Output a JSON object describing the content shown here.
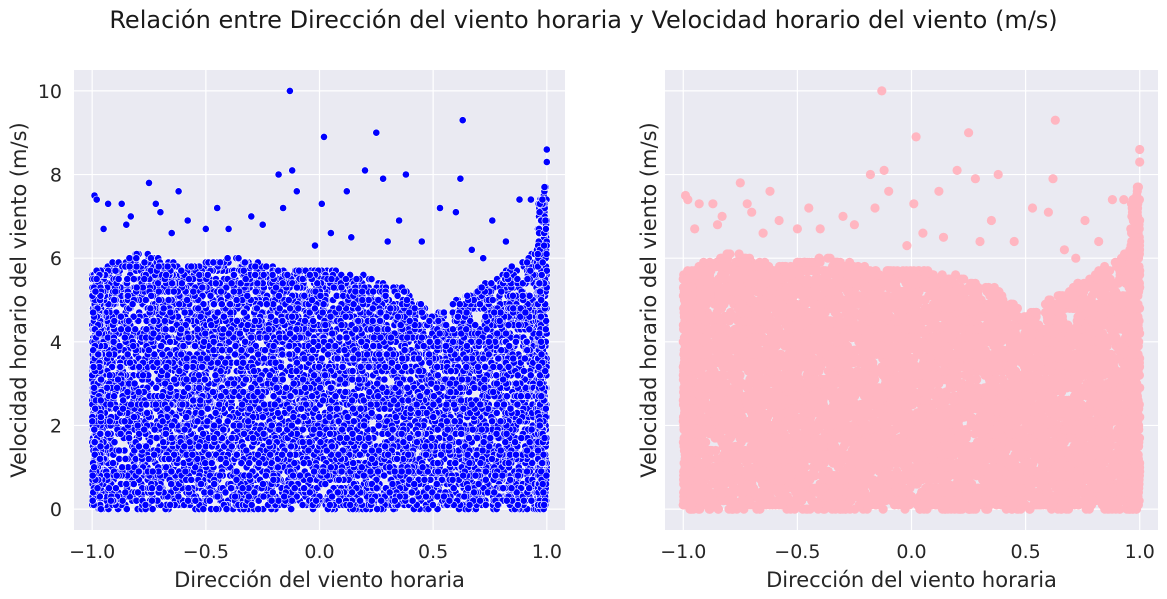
{
  "figure": {
    "suptitle": "Relación entre Dirección del viento horaria y Velocidad horario del viento (m/s)"
  },
  "chart_data": [
    {
      "type": "scatter",
      "title": "",
      "xlabel": "Dirección del viento horaria",
      "ylabel": "Velocidad horario del viento (m/s)",
      "xlim": [
        -1.08,
        1.08
      ],
      "ylim": [
        -0.5,
        10.5
      ],
      "xticks": [
        -1.0,
        -0.5,
        0.0,
        0.5,
        1.0
      ],
      "xtick_labels": [
        "−1.0",
        "−0.5",
        "0.0",
        "0.5",
        "1.0"
      ],
      "yticks": [
        0,
        2,
        4,
        6,
        8,
        10
      ],
      "ytick_labels": [
        "0",
        "2",
        "4",
        "6",
        "8",
        "10"
      ],
      "grid": true,
      "marker_color": "#0000ff",
      "marker_edge": "#ffffff",
      "density_upper_envelope": [
        {
          "x": -1.0,
          "y": 5.6
        },
        {
          "x": -0.8,
          "y": 6.2
        },
        {
          "x": -0.6,
          "y": 5.8
        },
        {
          "x": -0.4,
          "y": 6.0
        },
        {
          "x": -0.2,
          "y": 5.8
        },
        {
          "x": 0.0,
          "y": 5.7
        },
        {
          "x": 0.2,
          "y": 5.6
        },
        {
          "x": 0.4,
          "y": 5.2
        },
        {
          "x": 0.5,
          "y": 4.6
        },
        {
          "x": 0.6,
          "y": 5.0
        },
        {
          "x": 0.8,
          "y": 5.6
        },
        {
          "x": 0.95,
          "y": 6.2
        },
        {
          "x": 1.0,
          "y": 6.6
        }
      ],
      "outliers": [
        {
          "x": -0.13,
          "y": 10.0
        },
        {
          "x": 0.63,
          "y": 9.3
        },
        {
          "x": 0.25,
          "y": 9.0
        },
        {
          "x": 0.02,
          "y": 8.9
        },
        {
          "x": 1.0,
          "y": 8.6
        },
        {
          "x": 1.0,
          "y": 8.3
        },
        {
          "x": -0.12,
          "y": 8.1
        },
        {
          "x": -0.18,
          "y": 8.0
        },
        {
          "x": 0.2,
          "y": 8.1
        },
        {
          "x": 0.38,
          "y": 8.0
        },
        {
          "x": 0.28,
          "y": 7.9
        },
        {
          "x": 0.62,
          "y": 7.9
        },
        {
          "x": -0.75,
          "y": 7.8
        },
        {
          "x": -0.1,
          "y": 7.6
        },
        {
          "x": 0.12,
          "y": 7.6
        },
        {
          "x": -0.62,
          "y": 7.6
        },
        {
          "x": -0.99,
          "y": 7.5
        },
        {
          "x": -0.98,
          "y": 7.4
        },
        {
          "x": 0.88,
          "y": 7.4
        },
        {
          "x": 0.93,
          "y": 7.4
        },
        {
          "x": -0.93,
          "y": 7.3
        },
        {
          "x": -0.87,
          "y": 7.3
        },
        {
          "x": -0.72,
          "y": 7.3
        },
        {
          "x": -0.16,
          "y": 7.2
        },
        {
          "x": -0.45,
          "y": 7.2
        },
        {
          "x": 0.53,
          "y": 7.2
        },
        {
          "x": 0.01,
          "y": 7.3
        },
        {
          "x": -0.83,
          "y": 7.0
        },
        {
          "x": -0.7,
          "y": 7.1
        },
        {
          "x": -0.3,
          "y": 7.0
        },
        {
          "x": 0.6,
          "y": 7.1
        },
        {
          "x": 0.76,
          "y": 6.9
        },
        {
          "x": 0.35,
          "y": 6.9
        },
        {
          "x": -0.85,
          "y": 6.8
        },
        {
          "x": -0.58,
          "y": 6.9
        },
        {
          "x": -0.5,
          "y": 6.7
        },
        {
          "x": -0.25,
          "y": 6.8
        },
        {
          "x": 0.05,
          "y": 6.6
        },
        {
          "x": 0.14,
          "y": 6.5
        },
        {
          "x": -0.4,
          "y": 6.7
        },
        {
          "x": -0.65,
          "y": 6.6
        },
        {
          "x": 0.45,
          "y": 6.4
        },
        {
          "x": 0.82,
          "y": 6.4
        },
        {
          "x": -0.95,
          "y": 6.7
        },
        {
          "x": -0.02,
          "y": 6.3
        },
        {
          "x": 0.3,
          "y": 6.4
        },
        {
          "x": 0.67,
          "y": 6.2
        },
        {
          "x": 0.72,
          "y": 6.0
        }
      ]
    },
    {
      "type": "scatter",
      "title": "",
      "xlabel": "Dirección del viento horaria",
      "ylabel": "Velocidad horario del viento (m/s)",
      "xlim": [
        -1.08,
        1.08
      ],
      "ylim": [
        -0.5,
        10.5
      ],
      "xticks": [
        -1.0,
        -0.5,
        0.0,
        0.5,
        1.0
      ],
      "xtick_labels": [
        "−1.0",
        "−0.5",
        "0.0",
        "0.5",
        "1.0"
      ],
      "yticks": [
        0,
        2,
        4,
        6,
        8,
        10
      ],
      "ytick_labels": [],
      "sharey": true,
      "grid": true,
      "marker_color": "#ffb6c1",
      "same_data_as_left_panel": true
    }
  ]
}
